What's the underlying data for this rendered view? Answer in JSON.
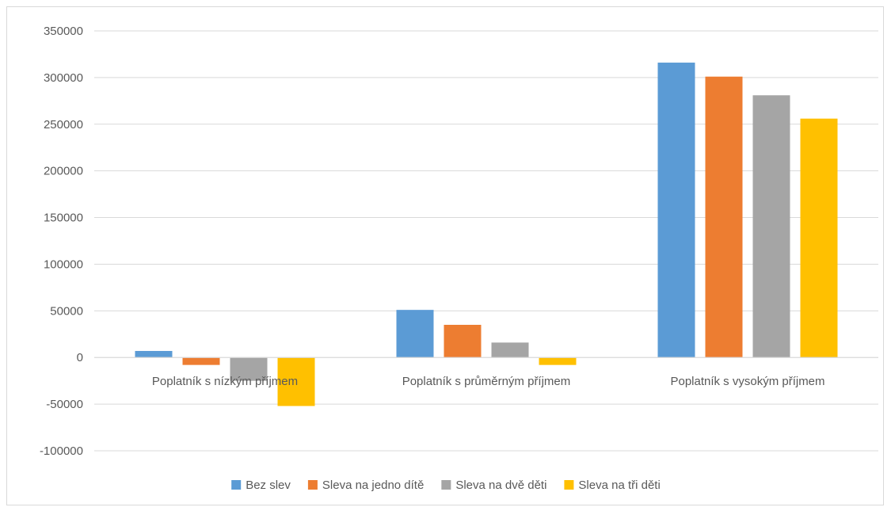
{
  "chart_data": {
    "type": "bar",
    "title": "",
    "xlabel": "",
    "ylabel": "",
    "categories": [
      "Poplatník s nízkým příjmem",
      "Poplatník s průměrným příjmem",
      "Poplatník s vysokým příjmem"
    ],
    "series": [
      {
        "name": "Bez slev",
        "color": "#5b9bd5",
        "values": [
          7000,
          51000,
          316000
        ]
      },
      {
        "name": "Sleva na jedno dítě",
        "color": "#ed7d31",
        "values": [
          -8000,
          35000,
          301000
        ]
      },
      {
        "name": "Sleva na dvě děti",
        "color": "#a5a5a5",
        "values": [
          -25000,
          16000,
          281000
        ]
      },
      {
        "name": "Sleva na tři děti",
        "color": "#ffc000",
        "values": [
          -52000,
          -8000,
          256000
        ]
      }
    ],
    "ylim": [
      -100000,
      350000
    ],
    "yticks": [
      350000,
      300000,
      250000,
      200000,
      150000,
      100000,
      50000,
      0,
      -50000,
      -100000
    ],
    "ytick_labels": [
      "350000",
      "300000",
      "250000",
      "200000",
      "150000",
      "100000",
      "50000",
      "0",
      "-50000",
      "-100000"
    ],
    "grid": true,
    "legend_position": "bottom"
  }
}
